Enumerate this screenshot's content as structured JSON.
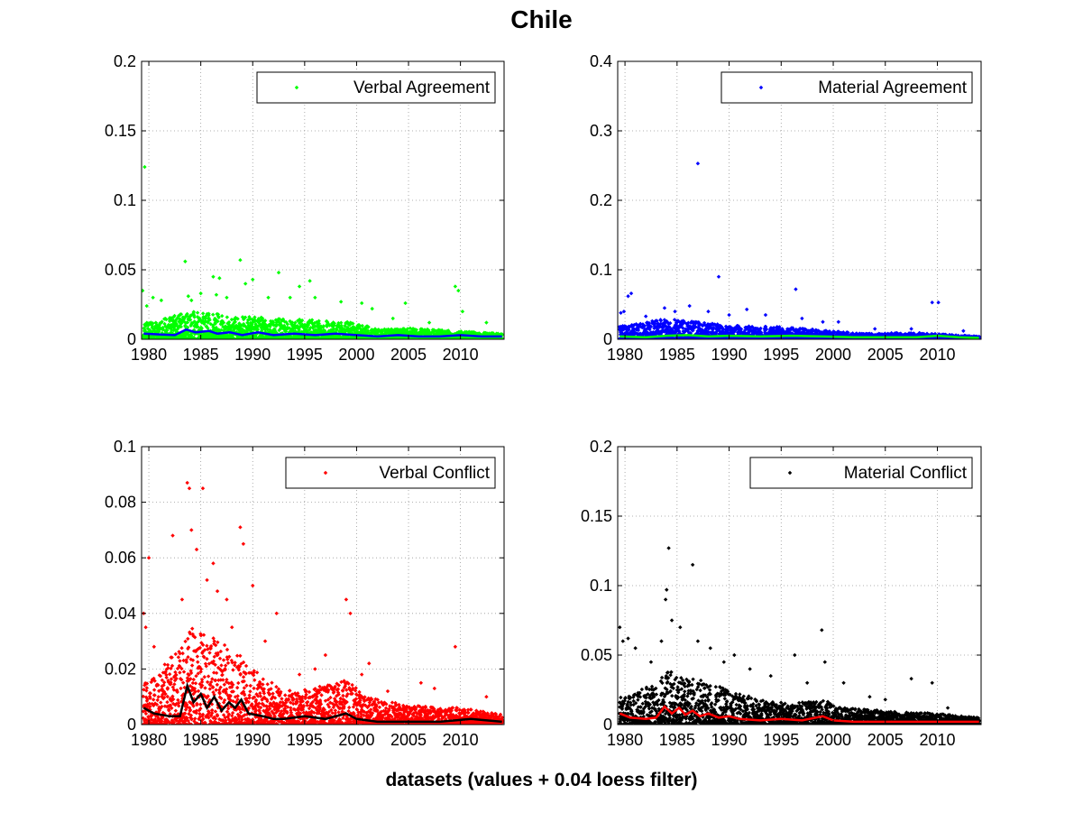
{
  "figure": {
    "title": "Chile",
    "xlabel": "datasets (values + 0.04 loess filter)"
  },
  "chart_data": [
    {
      "type": "scatter",
      "legend": "Verbal Agreement",
      "legend_position": "top-right",
      "grid": true,
      "xlim": [
        1979.3,
        2014.2
      ],
      "ylim": [
        0,
        0.2
      ],
      "xticks": [
        1980,
        1985,
        1990,
        1995,
        2000,
        2005,
        2010
      ],
      "yticks": [
        "0",
        "0.05",
        "0.1",
        "0.15",
        "0.2"
      ],
      "ytick_values": [
        0,
        0.05,
        0.1,
        0.15,
        0.2
      ],
      "point_color": "#00ff00",
      "smooth_color": "#0000ff",
      "baseline_density": [
        [
          1980,
          0.012
        ],
        [
          1984,
          0.02
        ],
        [
          1987,
          0.018
        ],
        [
          1990,
          0.016
        ],
        [
          1996,
          0.014
        ],
        [
          2000,
          0.012
        ],
        [
          2002,
          0.007
        ],
        [
          2005,
          0.008
        ],
        [
          2010,
          0.006
        ],
        [
          2014,
          0.004
        ]
      ],
      "outliers": [
        [
          1979.4,
          0.035
        ],
        [
          1979.6,
          0.124
        ],
        [
          1979.8,
          0.024
        ],
        [
          1980.4,
          0.03
        ],
        [
          1981.2,
          0.028
        ],
        [
          1983.5,
          0.056
        ],
        [
          1983.8,
          0.031
        ],
        [
          1984.1,
          0.028
        ],
        [
          1985.0,
          0.033
        ],
        [
          1986.2,
          0.045
        ],
        [
          1986.5,
          0.032
        ],
        [
          1986.8,
          0.044
        ],
        [
          1987.5,
          0.03
        ],
        [
          1988.8,
          0.057
        ],
        [
          1989.3,
          0.04
        ],
        [
          1990.0,
          0.043
        ],
        [
          1991.5,
          0.03
        ],
        [
          1992.5,
          0.048
        ],
        [
          1993.6,
          0.03
        ],
        [
          1994.5,
          0.038
        ],
        [
          1995.5,
          0.042
        ],
        [
          1996.0,
          0.03
        ],
        [
          1998.5,
          0.027
        ],
        [
          2000.5,
          0.026
        ],
        [
          2001.5,
          0.022
        ],
        [
          2003.5,
          0.015
        ],
        [
          2004.7,
          0.026
        ],
        [
          2007.0,
          0.012
        ],
        [
          2009.5,
          0.038
        ],
        [
          2009.8,
          0.035
        ],
        [
          2010.2,
          0.02
        ],
        [
          2012.5,
          0.012
        ]
      ],
      "smooth": [
        [
          1979.5,
          0.004
        ],
        [
          1981,
          0.0035
        ],
        [
          1982.5,
          0.003
        ],
        [
          1983.6,
          0.007
        ],
        [
          1984.5,
          0.005
        ],
        [
          1985.8,
          0.006
        ],
        [
          1986.6,
          0.004
        ],
        [
          1987.8,
          0.005
        ],
        [
          1989,
          0.003
        ],
        [
          1990.5,
          0.005
        ],
        [
          1992,
          0.003
        ],
        [
          1994,
          0.004
        ],
        [
          1996,
          0.003
        ],
        [
          1998,
          0.004
        ],
        [
          2000,
          0.003
        ],
        [
          2002,
          0.002
        ],
        [
          2004,
          0.003
        ],
        [
          2006,
          0.002
        ],
        [
          2008,
          0.002
        ],
        [
          2010,
          0.003
        ],
        [
          2012,
          0.002
        ],
        [
          2014,
          0.002
        ]
      ]
    },
    {
      "type": "scatter",
      "legend": "Material Agreement",
      "legend_position": "top-right",
      "grid": true,
      "xlim": [
        1979.3,
        2014.2
      ],
      "ylim": [
        0,
        0.4
      ],
      "xticks": [
        1980,
        1985,
        1990,
        1995,
        2000,
        2005,
        2010
      ],
      "yticks": [
        "0",
        "0.1",
        "0.2",
        "0.3",
        "0.4"
      ],
      "ytick_values": [
        0,
        0.1,
        0.2,
        0.3,
        0.4
      ],
      "point_color": "#0000ff",
      "smooth_color": "#00ff00",
      "baseline_density": [
        [
          1980,
          0.02
        ],
        [
          1984,
          0.03
        ],
        [
          1987,
          0.025
        ],
        [
          1990,
          0.02
        ],
        [
          1995,
          0.018
        ],
        [
          2000,
          0.012
        ],
        [
          2003,
          0.008
        ],
        [
          2007,
          0.01
        ],
        [
          2010,
          0.008
        ],
        [
          2014,
          0.004
        ]
      ],
      "outliers": [
        [
          1979.6,
          0.038
        ],
        [
          1979.9,
          0.04
        ],
        [
          1980.3,
          0.062
        ],
        [
          1980.6,
          0.066
        ],
        [
          1982.0,
          0.033
        ],
        [
          1983.8,
          0.045
        ],
        [
          1984.8,
          0.04
        ],
        [
          1986.2,
          0.048
        ],
        [
          1987.0,
          0.253
        ],
        [
          1988.0,
          0.04
        ],
        [
          1989.0,
          0.09
        ],
        [
          1990.0,
          0.035
        ],
        [
          1991.7,
          0.043
        ],
        [
          1993.5,
          0.035
        ],
        [
          1996.4,
          0.072
        ],
        [
          1997.0,
          0.03
        ],
        [
          1999.0,
          0.025
        ],
        [
          2000.5,
          0.025
        ],
        [
          2004.0,
          0.015
        ],
        [
          2007.5,
          0.015
        ],
        [
          2009.5,
          0.053
        ],
        [
          2010.1,
          0.053
        ],
        [
          2012.5,
          0.012
        ]
      ],
      "smooth": [
        [
          1979.5,
          0.004
        ],
        [
          1982,
          0.003
        ],
        [
          1984,
          0.005
        ],
        [
          1986,
          0.006
        ],
        [
          1988,
          0.004
        ],
        [
          1990,
          0.005
        ],
        [
          1993,
          0.004
        ],
        [
          1996,
          0.005
        ],
        [
          1999,
          0.004
        ],
        [
          2002,
          0.003
        ],
        [
          2005,
          0.003
        ],
        [
          2008,
          0.003
        ],
        [
          2010,
          0.005
        ],
        [
          2012,
          0.003
        ],
        [
          2014,
          0.002
        ]
      ]
    },
    {
      "type": "scatter",
      "legend": "Verbal Conflict",
      "legend_position": "top-right",
      "grid": true,
      "xlim": [
        1979.3,
        2014.2
      ],
      "ylim": [
        0,
        0.1
      ],
      "xticks": [
        1980,
        1985,
        1990,
        1995,
        2000,
        2005,
        2010
      ],
      "yticks": [
        "0",
        "0.02",
        "0.04",
        "0.06",
        "0.08",
        "0.1"
      ],
      "ytick_values": [
        0,
        0.02,
        0.04,
        0.06,
        0.08,
        0.1
      ],
      "point_color": "#ff0000",
      "smooth_color": "#000000",
      "baseline_density": [
        [
          1980,
          0.015
        ],
        [
          1983,
          0.028
        ],
        [
          1984,
          0.035
        ],
        [
          1986,
          0.032
        ],
        [
          1988,
          0.028
        ],
        [
          1990,
          0.02
        ],
        [
          1993,
          0.012
        ],
        [
          1997,
          0.014
        ],
        [
          1999,
          0.016
        ],
        [
          2001,
          0.01
        ],
        [
          2005,
          0.007
        ],
        [
          2010,
          0.006
        ],
        [
          2014,
          0.004
        ]
      ],
      "outliers": [
        [
          1979.5,
          0.04
        ],
        [
          1979.7,
          0.035
        ],
        [
          1980.0,
          0.06
        ],
        [
          1980.5,
          0.028
        ],
        [
          1982.3,
          0.068
        ],
        [
          1983.2,
          0.045
        ],
        [
          1983.7,
          0.087
        ],
        [
          1983.9,
          0.085
        ],
        [
          1984.1,
          0.07
        ],
        [
          1984.6,
          0.063
        ],
        [
          1985.2,
          0.085
        ],
        [
          1985.6,
          0.052
        ],
        [
          1986.2,
          0.058
        ],
        [
          1986.6,
          0.048
        ],
        [
          1987.5,
          0.045
        ],
        [
          1988.0,
          0.035
        ],
        [
          1988.8,
          0.071
        ],
        [
          1989.1,
          0.065
        ],
        [
          1990.0,
          0.05
        ],
        [
          1991.2,
          0.03
        ],
        [
          1992.3,
          0.04
        ],
        [
          1994.5,
          0.018
        ],
        [
          1996.0,
          0.02
        ],
        [
          1997.0,
          0.025
        ],
        [
          1999.0,
          0.045
        ],
        [
          1999.4,
          0.04
        ],
        [
          2000.5,
          0.018
        ],
        [
          2001.2,
          0.022
        ],
        [
          2003.0,
          0.012
        ],
        [
          2006.2,
          0.015
        ],
        [
          2007.5,
          0.013
        ],
        [
          2009.5,
          0.028
        ],
        [
          2012.5,
          0.01
        ]
      ],
      "smooth": [
        [
          1979.5,
          0.006
        ],
        [
          1980.5,
          0.004
        ],
        [
          1982,
          0.003
        ],
        [
          1983,
          0.003
        ],
        [
          1983.7,
          0.014
        ],
        [
          1984.3,
          0.008
        ],
        [
          1985,
          0.011
        ],
        [
          1985.6,
          0.006
        ],
        [
          1986.3,
          0.01
        ],
        [
          1987,
          0.005
        ],
        [
          1987.7,
          0.008
        ],
        [
          1988.3,
          0.006
        ],
        [
          1988.9,
          0.009
        ],
        [
          1989.6,
          0.004
        ],
        [
          1991,
          0.003
        ],
        [
          1992,
          0.002
        ],
        [
          1993,
          0.002
        ],
        [
          1995,
          0.003
        ],
        [
          1997,
          0.002
        ],
        [
          1999,
          0.004
        ],
        [
          2000,
          0.002
        ],
        [
          2002,
          0.001
        ],
        [
          2005,
          0.001
        ],
        [
          2008,
          0.001
        ],
        [
          2011,
          0.002
        ],
        [
          2014,
          0.001
        ]
      ]
    },
    {
      "type": "scatter",
      "legend": "Material Conflict",
      "legend_position": "top-right",
      "grid": true,
      "xlim": [
        1979.3,
        2014.2
      ],
      "ylim": [
        0,
        0.2
      ],
      "xticks": [
        1980,
        1985,
        1990,
        1995,
        2000,
        2005,
        2010
      ],
      "yticks": [
        "0",
        "0.05",
        "0.1",
        "0.15",
        "0.2"
      ],
      "ytick_values": [
        0,
        0.05,
        0.1,
        0.15,
        0.2
      ],
      "point_color": "#000000",
      "smooth_color": "#ff0000",
      "baseline_density": [
        [
          1980,
          0.02
        ],
        [
          1983,
          0.03
        ],
        [
          1984,
          0.04
        ],
        [
          1986,
          0.035
        ],
        [
          1988,
          0.03
        ],
        [
          1990,
          0.025
        ],
        [
          1993,
          0.018
        ],
        [
          1996,
          0.015
        ],
        [
          1999,
          0.018
        ],
        [
          2001,
          0.012
        ],
        [
          2005,
          0.01
        ],
        [
          2010,
          0.008
        ],
        [
          2014,
          0.005
        ]
      ],
      "outliers": [
        [
          1979.5,
          0.07
        ],
        [
          1979.8,
          0.06
        ],
        [
          1980.3,
          0.062
        ],
        [
          1981.0,
          0.055
        ],
        [
          1982.5,
          0.045
        ],
        [
          1983.5,
          0.06
        ],
        [
          1983.9,
          0.09
        ],
        [
          1984.0,
          0.097
        ],
        [
          1984.2,
          0.127
        ],
        [
          1984.5,
          0.075
        ],
        [
          1985.3,
          0.07
        ],
        [
          1986.5,
          0.115
        ],
        [
          1987.0,
          0.06
        ],
        [
          1988.2,
          0.055
        ],
        [
          1989.5,
          0.045
        ],
        [
          1990.5,
          0.05
        ],
        [
          1992.0,
          0.04
        ],
        [
          1994.0,
          0.035
        ],
        [
          1996.3,
          0.05
        ],
        [
          1997.5,
          0.03
        ],
        [
          1998.9,
          0.068
        ],
        [
          1999.2,
          0.045
        ],
        [
          2001.0,
          0.03
        ],
        [
          2003.5,
          0.02
        ],
        [
          2005.0,
          0.018
        ],
        [
          2007.5,
          0.033
        ],
        [
          2009.5,
          0.03
        ],
        [
          2011.0,
          0.012
        ]
      ],
      "smooth": [
        [
          1979.5,
          0.008
        ],
        [
          1980.5,
          0.005
        ],
        [
          1982,
          0.004
        ],
        [
          1983,
          0.005
        ],
        [
          1983.8,
          0.013
        ],
        [
          1984.5,
          0.008
        ],
        [
          1985.2,
          0.012
        ],
        [
          1985.8,
          0.007
        ],
        [
          1986.5,
          0.01
        ],
        [
          1987.2,
          0.006
        ],
        [
          1988,
          0.008
        ],
        [
          1989,
          0.005
        ],
        [
          1990,
          0.006
        ],
        [
          1991,
          0.004
        ],
        [
          1993,
          0.003
        ],
        [
          1995,
          0.004
        ],
        [
          1997,
          0.003
        ],
        [
          1999,
          0.006
        ],
        [
          2000,
          0.003
        ],
        [
          2002,
          0.002
        ],
        [
          2005,
          0.002
        ],
        [
          2008,
          0.002
        ],
        [
          2011,
          0.002
        ],
        [
          2014,
          0.002
        ]
      ]
    }
  ]
}
